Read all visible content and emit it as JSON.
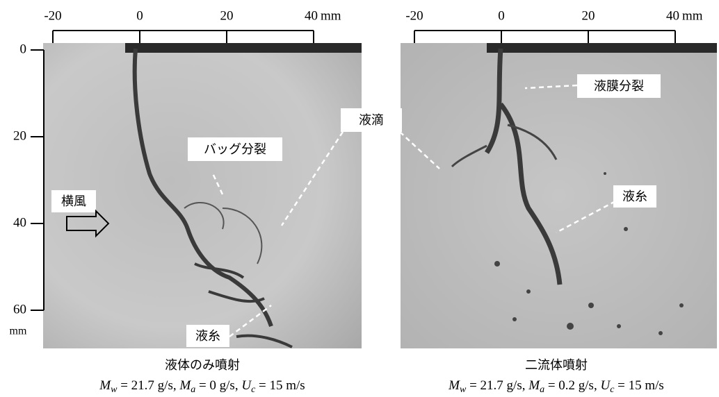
{
  "panels": [
    {
      "x_axis": {
        "ticks": [
          -20,
          0,
          20,
          40
        ],
        "unit": "mm"
      },
      "y_axis": {
        "ticks": [
          0,
          20,
          40,
          60
        ],
        "unit": "mm"
      },
      "annotations": [
        "横風",
        "バッグ分裂",
        "液糸"
      ],
      "caption": "液体のみ噴射",
      "conditions": [
        {
          "symbol": "M",
          "sub": "w",
          "text": " = 21.7 g/s,"
        },
        {
          "symbol": "M",
          "sub": "a",
          "text": " = 0 g/s,"
        },
        {
          "symbol": "U",
          "sub": "c",
          "text": " = 15 m/s"
        }
      ]
    },
    {
      "x_axis": {
        "ticks": [
          -20,
          0,
          20,
          40
        ],
        "unit": "mm"
      },
      "annotations": [
        "液膜分裂",
        "液糸"
      ],
      "caption": "二流体噴射",
      "conditions": [
        {
          "symbol": "M",
          "sub": "w",
          "text": " = 21.7 g/s,"
        },
        {
          "symbol": "M",
          "sub": "a",
          "text": " = 0.2 g/s,"
        },
        {
          "symbol": "U",
          "sub": "c",
          "text": " = 15 m/s"
        }
      ]
    }
  ],
  "shared_annotation": "液滴"
}
